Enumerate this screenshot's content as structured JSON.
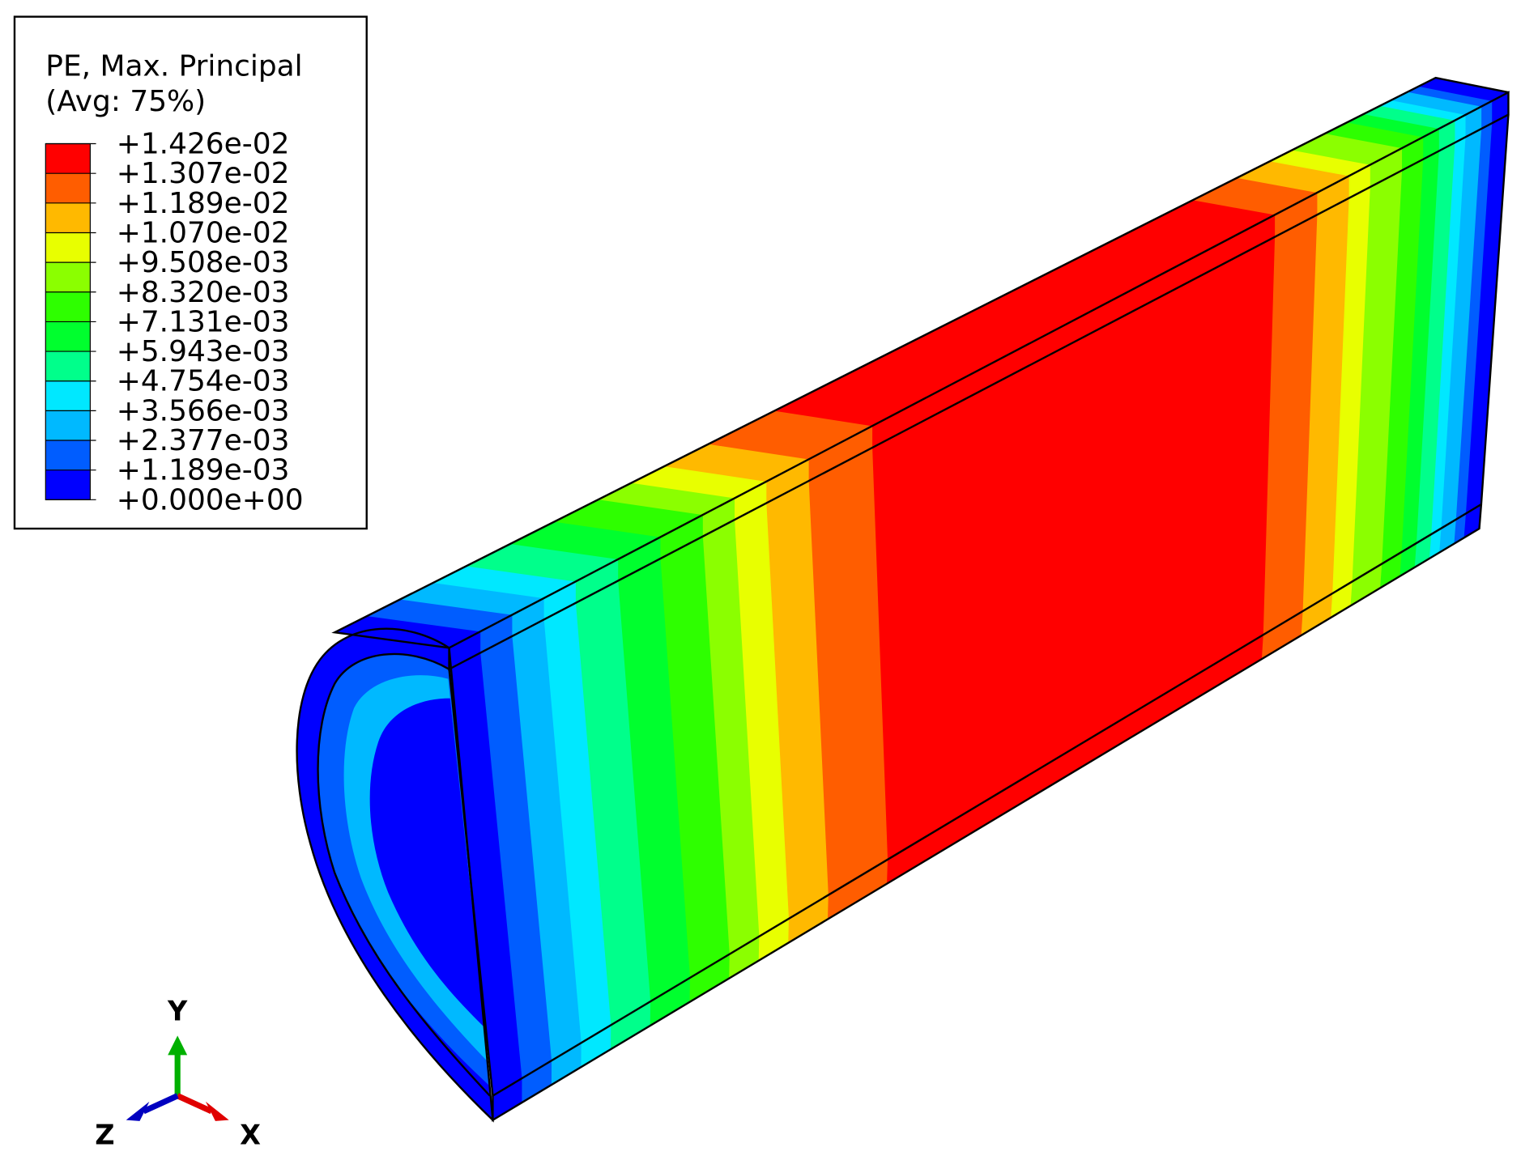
{
  "legend": {
    "title": "PE, Max. Principal",
    "subtitle": "(Avg: 75%)",
    "levels": [
      "+1.426e-02",
      "+1.307e-02",
      "+1.189e-02",
      "+1.070e-02",
      "+9.508e-03",
      "+8.320e-03",
      "+7.131e-03",
      "+5.943e-03",
      "+4.754e-03",
      "+3.566e-03",
      "+2.377e-03",
      "+1.189e-03",
      "+0.000e+00"
    ],
    "colors": [
      "#ff0000",
      "#ff5d00",
      "#ffb900",
      "#e8ff00",
      "#8bff00",
      "#2eff00",
      "#00ff2e",
      "#00ff8b",
      "#00e8ff",
      "#00b9ff",
      "#005dff",
      "#0000ff"
    ]
  },
  "triad": {
    "y": "Y",
    "x": "X",
    "z": "Z"
  }
}
